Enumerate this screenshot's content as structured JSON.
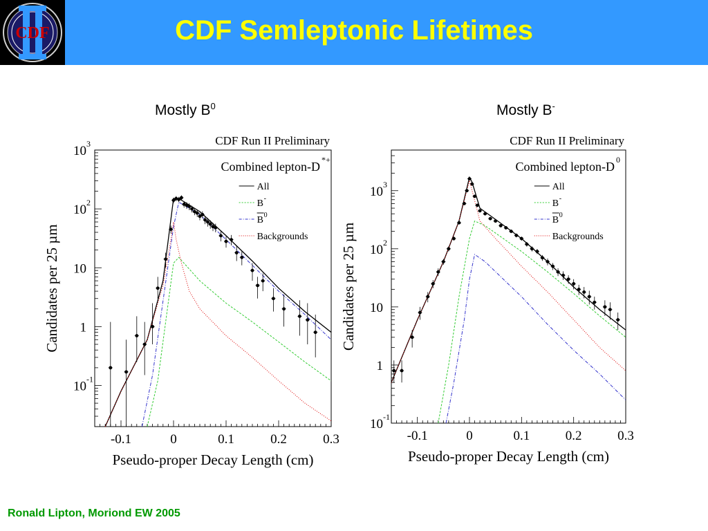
{
  "slide": {
    "title": "CDF Semleptonic Lifetimes",
    "footer": "Ronald Lipton, Moriond EW 2005",
    "logo_text": "CDF",
    "colors": {
      "header_bg": "#3399ff",
      "title": "#ffff00",
      "footer": "#009900"
    }
  },
  "charts": [
    {
      "heading_base": "Mostly B",
      "heading_sup": "0"
    },
    {
      "heading_base": "Mostly B",
      "heading_sup": "-"
    }
  ],
  "chart_data": [
    {
      "type": "scatter",
      "title": "CDF Run II Preliminary",
      "subtitle": "Combined lepton-D",
      "subtitle_sup": "*+",
      "xlabel": "Pseudo-proper Decay Length (cm)",
      "ylabel": "Candidates per 25 µm",
      "yscale": "log",
      "xlim": [
        -0.15,
        0.3
      ],
      "ylim": [
        0.02,
        1000
      ],
      "xticks": [
        -0.1,
        0,
        0.1,
        0.2,
        0.3
      ],
      "xtick_labels": [
        "-0.1",
        "0",
        "0.1",
        "0.2",
        "0.3"
      ],
      "yticks": [
        0.1,
        1,
        10,
        100,
        1000
      ],
      "ytick_labels": [
        {
          "base": "10",
          "exp": "-1"
        },
        {
          "base": "1",
          "exp": ""
        },
        {
          "base": "10",
          "exp": ""
        },
        {
          "base": "10",
          "exp": "2"
        },
        {
          "base": "10",
          "exp": "3"
        }
      ],
      "legend": {
        "placement": "top-right",
        "entries": [
          {
            "label": "All",
            "sup": "",
            "bar": false,
            "color": "#000000",
            "dash": ""
          },
          {
            "label": "B",
            "sup": "-",
            "bar": false,
            "color": "#33cc33",
            "dash": "2,2"
          },
          {
            "label": "B",
            "sup": "0",
            "bar": true,
            "color": "#3333cc",
            "dash": "4,2,1,2"
          },
          {
            "label": "Backgrounds",
            "sup": "",
            "bar": false,
            "color": "#dd0000",
            "dash": "1,2"
          }
        ]
      },
      "series": [
        {
          "name": "All",
          "style": "solid",
          "color": "#000000",
          "x": [
            -0.13,
            -0.1,
            -0.05,
            -0.02,
            0.0,
            0.01,
            0.05,
            0.1,
            0.15,
            0.2,
            0.25,
            0.3
          ],
          "y": [
            0.02,
            0.08,
            0.6,
            6,
            150,
            150,
            90,
            35,
            13,
            4.5,
            1.8,
            0.8
          ]
        },
        {
          "name": "B-",
          "style": "dashed",
          "color": "#33cc33",
          "x": [
            -0.05,
            -0.03,
            0.0,
            0.01,
            0.05,
            0.1,
            0.15,
            0.2,
            0.25,
            0.3
          ],
          "y": [
            0.02,
            0.12,
            12,
            15,
            6,
            2.5,
            1.2,
            0.55,
            0.25,
            0.12
          ]
        },
        {
          "name": "B0",
          "style": "dashdot",
          "color": "#3333cc",
          "x": [
            -0.06,
            -0.04,
            0.0,
            0.01,
            0.05,
            0.1,
            0.15,
            0.2,
            0.25,
            0.3
          ],
          "y": [
            0.02,
            0.15,
            50,
            130,
            80,
            30,
            11,
            4,
            1.6,
            0.6
          ]
        },
        {
          "name": "Backgrounds",
          "style": "dotted",
          "color": "#dd0000",
          "x": [
            -0.13,
            -0.1,
            -0.05,
            -0.02,
            -0.005,
            0.0,
            0.005,
            0.015,
            0.03,
            0.05,
            0.1,
            0.15,
            0.2,
            0.25,
            0.3
          ],
          "y": [
            0.02,
            0.08,
            0.6,
            5,
            30,
            60,
            30,
            12,
            4,
            2,
            0.7,
            0.3,
            0.12,
            0.05,
            0.025
          ]
        }
      ],
      "points": [
        {
          "x": -0.12,
          "y": 0.2,
          "e": [
            0.02,
            1.2
          ]
        },
        {
          "x": -0.09,
          "y": 0.17,
          "e": [
            0.02,
            0.6
          ]
        },
        {
          "x": -0.07,
          "y": 0.7,
          "e": [
            0.25,
            1.5
          ]
        },
        {
          "x": -0.055,
          "y": 0.5,
          "e": [
            0.15,
            1.2
          ]
        },
        {
          "x": -0.04,
          "y": 1.0,
          "e": [
            0.5,
            2.5
          ]
        },
        {
          "x": -0.03,
          "y": 4.5,
          "e": [
            3,
            7
          ]
        },
        {
          "x": -0.015,
          "y": 14,
          "e": [
            10,
            18
          ]
        },
        {
          "x": -0.005,
          "y": 45,
          "e": [
            38,
            52
          ]
        },
        {
          "x": 0.0,
          "y": 140,
          "e": [
            125,
            155
          ]
        },
        {
          "x": 0.005,
          "y": 150,
          "e": [
            135,
            165
          ]
        },
        {
          "x": 0.01,
          "y": 145,
          "e": [
            130,
            160
          ]
        },
        {
          "x": 0.015,
          "y": 155,
          "e": [
            140,
            170
          ]
        },
        {
          "x": 0.02,
          "y": 120,
          "e": [
            105,
            135
          ]
        },
        {
          "x": 0.025,
          "y": 115,
          "e": [
            100,
            130
          ]
        },
        {
          "x": 0.03,
          "y": 110,
          "e": [
            95,
            125
          ]
        },
        {
          "x": 0.035,
          "y": 100,
          "e": [
            87,
            113
          ]
        },
        {
          "x": 0.04,
          "y": 90,
          "e": [
            78,
            102
          ]
        },
        {
          "x": 0.045,
          "y": 85,
          "e": [
            73,
            97
          ]
        },
        {
          "x": 0.05,
          "y": 75,
          "e": [
            64,
            86
          ]
        },
        {
          "x": 0.055,
          "y": 80,
          "e": [
            69,
            91
          ]
        },
        {
          "x": 0.06,
          "y": 65,
          "e": [
            55,
            75
          ]
        },
        {
          "x": 0.065,
          "y": 60,
          "e": [
            50,
            70
          ]
        },
        {
          "x": 0.07,
          "y": 55,
          "e": [
            46,
            64
          ]
        },
        {
          "x": 0.075,
          "y": 50,
          "e": [
            42,
            58
          ]
        },
        {
          "x": 0.08,
          "y": 48,
          "e": [
            40,
            56
          ]
        },
        {
          "x": 0.09,
          "y": 35,
          "e": [
            28,
            42
          ]
        },
        {
          "x": 0.1,
          "y": 28,
          "e": [
            22,
            34
          ]
        },
        {
          "x": 0.11,
          "y": 30,
          "e": [
            24,
            36
          ]
        },
        {
          "x": 0.12,
          "y": 18,
          "e": [
            13,
            23
          ]
        },
        {
          "x": 0.13,
          "y": 15,
          "e": [
            11,
            19
          ]
        },
        {
          "x": 0.15,
          "y": 9,
          "e": [
            6,
            12
          ]
        },
        {
          "x": 0.16,
          "y": 5,
          "e": [
            3,
            7
          ]
        },
        {
          "x": 0.17,
          "y": 6,
          "e": [
            4,
            8
          ]
        },
        {
          "x": 0.19,
          "y": 3,
          "e": [
            1.8,
            4.5
          ]
        },
        {
          "x": 0.21,
          "y": 2,
          "e": [
            1,
            3.5
          ]
        },
        {
          "x": 0.24,
          "y": 1.5,
          "e": [
            0.7,
            2.8
          ]
        },
        {
          "x": 0.255,
          "y": 1.3,
          "e": [
            0.5,
            2.5
          ]
        },
        {
          "x": 0.27,
          "y": 0.8,
          "e": [
            0.3,
            1.6
          ]
        }
      ]
    },
    {
      "type": "scatter",
      "title": "CDF Run II Preliminary",
      "subtitle": "Combined lepton-D",
      "subtitle_sup": "0",
      "xlabel": "Pseudo-proper Decay Length (cm)",
      "ylabel": "Candidates per 25 µm",
      "yscale": "log",
      "xlim": [
        -0.15,
        0.3
      ],
      "ylim": [
        0.1,
        5000
      ],
      "xticks": [
        -0.1,
        0,
        0.1,
        0.2,
        0.3
      ],
      "xtick_labels": [
        "-0.1",
        "0",
        "0.1",
        "0.2",
        "0.3"
      ],
      "yticks": [
        0.1,
        1,
        10,
        100,
        1000
      ],
      "ytick_labels": [
        {
          "base": "10",
          "exp": "-1"
        },
        {
          "base": "1",
          "exp": ""
        },
        {
          "base": "10",
          "exp": ""
        },
        {
          "base": "10",
          "exp": "2"
        },
        {
          "base": "10",
          "exp": "3"
        }
      ],
      "legend": {
        "placement": "top-right",
        "entries": [
          {
            "label": "All",
            "sup": "",
            "bar": false,
            "color": "#000000",
            "dash": ""
          },
          {
            "label": "B",
            "sup": "-",
            "bar": false,
            "color": "#33cc33",
            "dash": "2,2"
          },
          {
            "label": "B",
            "sup": "0",
            "bar": true,
            "color": "#3333cc",
            "dash": "4,2,1,2"
          },
          {
            "label": "Backgrounds",
            "sup": "",
            "bar": false,
            "color": "#dd0000",
            "dash": "1,2"
          }
        ]
      },
      "series": [
        {
          "name": "All",
          "style": "solid",
          "color": "#000000",
          "x": [
            -0.15,
            -0.1,
            -0.05,
            -0.02,
            0.0,
            0.005,
            0.02,
            0.05,
            0.1,
            0.15,
            0.2,
            0.25,
            0.3
          ],
          "y": [
            0.5,
            6,
            60,
            300,
            1700,
            1400,
            500,
            320,
            150,
            60,
            22,
            9,
            4
          ]
        },
        {
          "name": "B-",
          "style": "dashed",
          "color": "#33cc33",
          "x": [
            -0.06,
            -0.04,
            -0.02,
            0.0,
            0.01,
            0.03,
            0.1,
            0.15,
            0.2,
            0.25,
            0.3
          ],
          "y": [
            0.1,
            1,
            15,
            150,
            300,
            250,
            90,
            40,
            17,
            7,
            3
          ]
        },
        {
          "name": "B0",
          "style": "dashdot",
          "color": "#3333cc",
          "x": [
            -0.045,
            -0.03,
            -0.01,
            0.0,
            0.01,
            0.03,
            0.1,
            0.15,
            0.2,
            0.25,
            0.3
          ],
          "y": [
            0.1,
            0.5,
            6,
            30,
            80,
            60,
            15,
            5,
            1.8,
            0.7,
            0.25
          ]
        },
        {
          "name": "Backgrounds",
          "style": "dotted",
          "color": "#dd0000",
          "x": [
            -0.15,
            -0.1,
            -0.05,
            -0.02,
            0.0,
            0.005,
            0.02,
            0.05,
            0.1,
            0.15,
            0.2,
            0.25,
            0.3
          ],
          "y": [
            0.5,
            6,
            60,
            300,
            1500,
            1000,
            300,
            150,
            50,
            18,
            6,
            2,
            0.8
          ]
        }
      ],
      "points": [
        {
          "x": -0.145,
          "y": 0.8,
          "e": [
            0.5,
            1.2
          ]
        },
        {
          "x": -0.13,
          "y": 0.8,
          "e": [
            0.5,
            1.2
          ]
        },
        {
          "x": -0.11,
          "y": 3,
          "e": [
            2,
            4
          ]
        },
        {
          "x": -0.095,
          "y": 8,
          "e": [
            6,
            10
          ]
        },
        {
          "x": -0.08,
          "y": 15,
          "e": [
            12,
            18
          ]
        },
        {
          "x": -0.07,
          "y": 25,
          "e": [
            21,
            29
          ]
        },
        {
          "x": -0.06,
          "y": 40,
          "e": [
            34,
            46
          ]
        },
        {
          "x": -0.05,
          "y": 60,
          "e": [
            53,
            67
          ]
        },
        {
          "x": -0.04,
          "y": 100,
          "e": [
            90,
            110
          ]
        },
        {
          "x": -0.03,
          "y": 150,
          "e": [
            138,
            162
          ]
        },
        {
          "x": -0.02,
          "y": 280,
          "e": [
            263,
            297
          ]
        },
        {
          "x": -0.01,
          "y": 600,
          "e": [
            575,
            625
          ]
        },
        {
          "x": -0.005,
          "y": 1000,
          "e": [
            968,
            1032
          ]
        },
        {
          "x": 0.0,
          "y": 1600,
          "e": [
            1560,
            1640
          ]
        },
        {
          "x": 0.005,
          "y": 1300,
          "e": [
            1264,
            1336
          ]
        },
        {
          "x": 0.01,
          "y": 800,
          "e": [
            772,
            828
          ]
        },
        {
          "x": 0.015,
          "y": 560,
          "e": [
            536,
            584
          ]
        },
        {
          "x": 0.02,
          "y": 450,
          "e": [
            429,
            471
          ]
        },
        {
          "x": 0.03,
          "y": 400,
          "e": [
            380,
            420
          ]
        },
        {
          "x": 0.04,
          "y": 330,
          "e": [
            312,
            348
          ]
        },
        {
          "x": 0.05,
          "y": 300,
          "e": [
            283,
            317
          ]
        },
        {
          "x": 0.06,
          "y": 250,
          "e": [
            234,
            266
          ]
        },
        {
          "x": 0.07,
          "y": 230,
          "e": [
            215,
            245
          ]
        },
        {
          "x": 0.08,
          "y": 200,
          "e": [
            186,
            214
          ]
        },
        {
          "x": 0.09,
          "y": 170,
          "e": [
            157,
            183
          ]
        },
        {
          "x": 0.1,
          "y": 150,
          "e": [
            138,
            162
          ]
        },
        {
          "x": 0.11,
          "y": 120,
          "e": [
            109,
            131
          ]
        },
        {
          "x": 0.12,
          "y": 100,
          "e": [
            90,
            110
          ]
        },
        {
          "x": 0.13,
          "y": 90,
          "e": [
            81,
            99
          ]
        },
        {
          "x": 0.14,
          "y": 70,
          "e": [
            62,
            78
          ]
        },
        {
          "x": 0.15,
          "y": 60,
          "e": [
            52,
            68
          ]
        },
        {
          "x": 0.16,
          "y": 50,
          "e": [
            43,
            57
          ]
        },
        {
          "x": 0.17,
          "y": 40,
          "e": [
            34,
            46
          ]
        },
        {
          "x": 0.18,
          "y": 35,
          "e": [
            29,
            41
          ]
        },
        {
          "x": 0.19,
          "y": 30,
          "e": [
            25,
            35
          ]
        },
        {
          "x": 0.2,
          "y": 25,
          "e": [
            20,
            30
          ]
        },
        {
          "x": 0.21,
          "y": 20,
          "e": [
            16,
            24
          ]
        },
        {
          "x": 0.22,
          "y": 18,
          "e": [
            14,
            22
          ]
        },
        {
          "x": 0.23,
          "y": 15,
          "e": [
            11,
            19
          ]
        },
        {
          "x": 0.24,
          "y": 12,
          "e": [
            9,
            15
          ]
        },
        {
          "x": 0.26,
          "y": 10,
          "e": [
            7,
            13
          ]
        },
        {
          "x": 0.27,
          "y": 9,
          "e": [
            6,
            12
          ]
        },
        {
          "x": 0.285,
          "y": 6,
          "e": [
            4,
            8
          ]
        }
      ]
    }
  ]
}
